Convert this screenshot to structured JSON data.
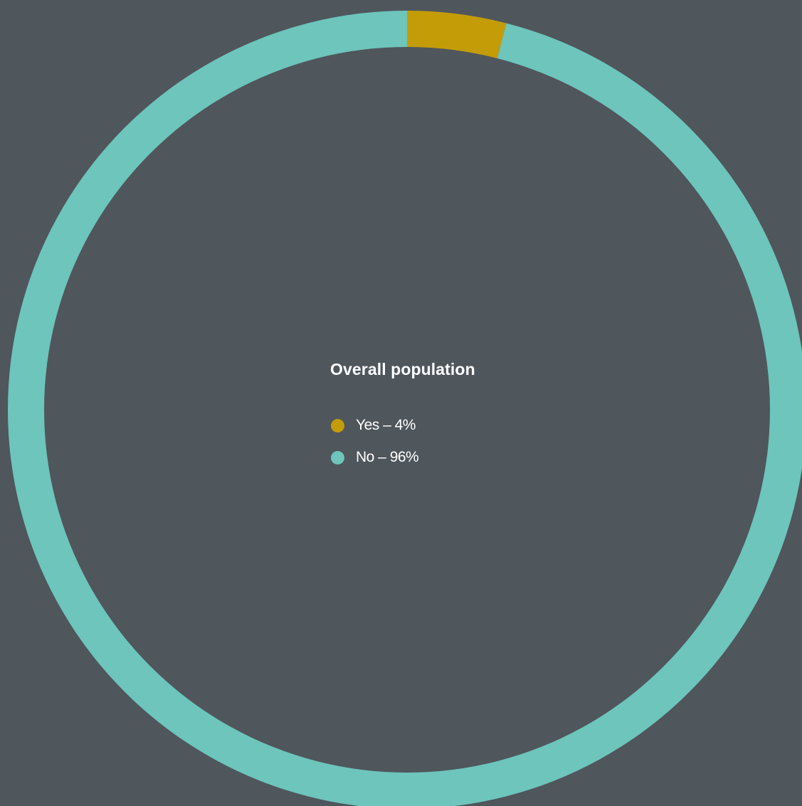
{
  "chart_data": {
    "type": "pie",
    "variant": "donut",
    "title": "Overall population",
    "slices": [
      {
        "name": "Yes",
        "value": 4,
        "color": "#c49c08"
      },
      {
        "name": "No",
        "value": 96,
        "color": "#6dc5bc"
      }
    ],
    "legend": [
      {
        "label": "Yes – 4%",
        "color": "#c49c08"
      },
      {
        "label": "No – 96%",
        "color": "#6dc5bc"
      }
    ],
    "legend_placement": "center"
  },
  "background_color": "#4f565c"
}
